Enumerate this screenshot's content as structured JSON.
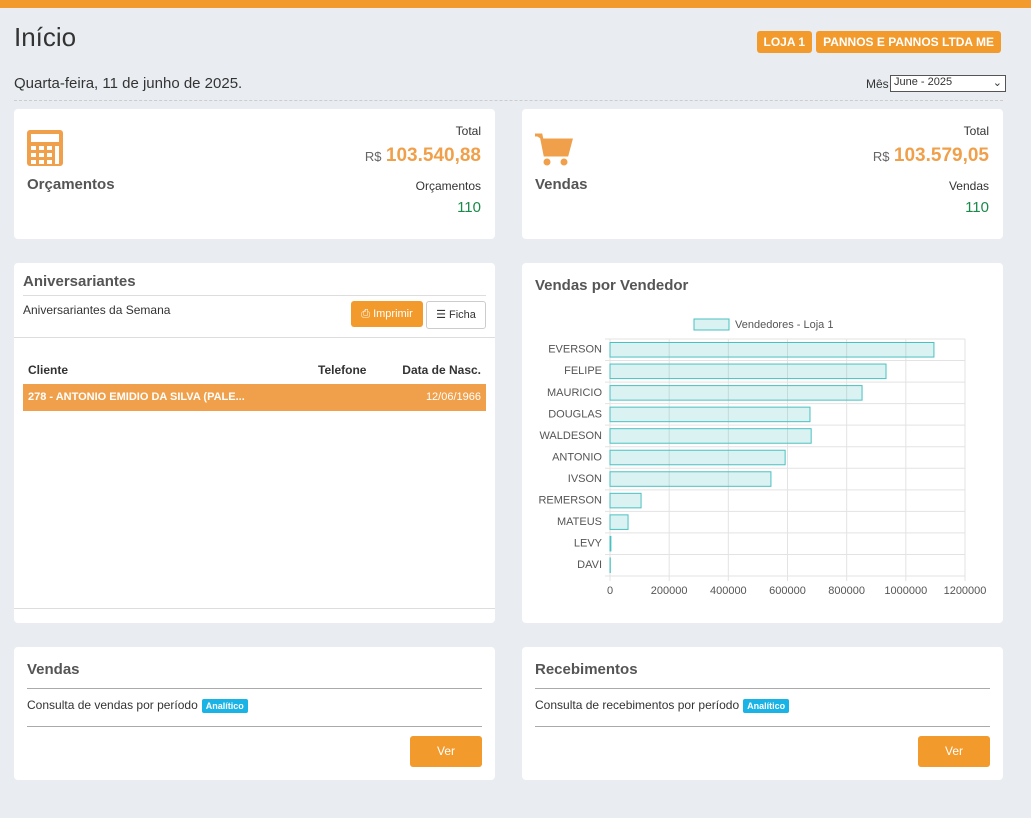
{
  "header": {
    "title": "Início",
    "badges": [
      "LOJA 1",
      "PANNOS E PANNOS LTDA ME"
    ],
    "date": "Quarta-feira, 11 de junho de 2025.",
    "month_label": "Mês",
    "month_value": "June - 2025"
  },
  "summary": [
    {
      "name": "Orçamentos",
      "total_label": "Total",
      "currency": "R$",
      "total": "103.540,88",
      "count_label": "Orçamentos",
      "count": 110
    },
    {
      "name": "Vendas",
      "total_label": "Total",
      "currency": "R$",
      "total": "103.579,05",
      "count_label": "Vendas",
      "count": 110
    }
  ],
  "birthdays": {
    "title": "Aniversariantes",
    "subtitle": "Aniversariantes da Semana",
    "buttons": [
      "Imprimir",
      "Ficha"
    ],
    "columns": [
      "Cliente",
      "Telefone",
      "Data de Nasc."
    ],
    "rows": [
      {
        "client": "278 - ANTONIO EMIDIO DA SILVA (PALE...",
        "birthdate": "12/06/1966"
      }
    ]
  },
  "chart_data": {
    "type": "bar",
    "orientation": "horizontal",
    "title": "Vendas por Vendedor",
    "categories": [
      "EVERSON",
      "FELIPE",
      "MAURICIO",
      "DOUGLAS",
      "WALDESON",
      "ANTONIO",
      "IVSON",
      "REMERSON",
      "MATEUS",
      "LEVY",
      "DAVI"
    ],
    "series": [
      {
        "name": "Vendedores - Loja 1",
        "color": "#4bc0c0",
        "values": [
          1095000,
          933000,
          852000,
          676000,
          680000,
          592000,
          544000,
          105000,
          61000,
          3000,
          1000
        ]
      }
    ],
    "xlim": [
      0,
      1200000
    ],
    "xticks": [
      0,
      200000,
      400000,
      600000,
      800000,
      1000000,
      1200000
    ],
    "grid": true,
    "legend": "top"
  },
  "reports": [
    {
      "title": "Vendas",
      "description": "Consulta de vendas por período",
      "tag": "Analítico",
      "button": "Ver"
    },
    {
      "title": "Recebimentos",
      "description": "Consulta de recebimentos por período",
      "tag": "Analítico",
      "button": "Ver"
    }
  ]
}
